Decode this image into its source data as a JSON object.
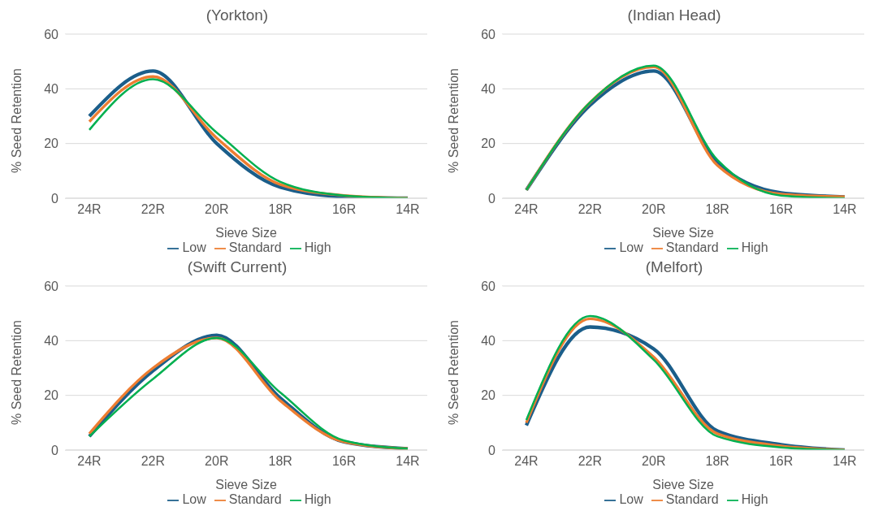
{
  "chart_data": [
    {
      "type": "line",
      "title": "(Yorkton)",
      "xlabel": "Sieve Size",
      "ylabel": "% Seed Retention",
      "categories": [
        "24R",
        "22R",
        "20R",
        "18R",
        "16R",
        "14R"
      ],
      "ylim": [
        0,
        60
      ],
      "yticks": [
        0,
        20,
        40,
        60
      ],
      "grid": "y",
      "legend": "bottom",
      "marker": "none",
      "line_style": "solid",
      "series": [
        {
          "name": "Low",
          "color": "#1b5e8a",
          "values": [
            30,
            46.5,
            20,
            4,
            0.5,
            0
          ]
        },
        {
          "name": "Standard",
          "color": "#ed7d31",
          "values": [
            28,
            44.5,
            22,
            5,
            1,
            0
          ]
        },
        {
          "name": "High",
          "color": "#00b050",
          "values": [
            25,
            43.5,
            24,
            6,
            1,
            0
          ]
        }
      ]
    },
    {
      "type": "line",
      "title": "(Indian Head)",
      "xlabel": "Sieve Size",
      "ylabel": "% Seed Retention",
      "categories": [
        "24R",
        "22R",
        "20R",
        "18R",
        "16R",
        "14R"
      ],
      "ylim": [
        0,
        60
      ],
      "yticks": [
        0,
        20,
        40,
        60
      ],
      "grid": "y",
      "legend": "bottom",
      "marker": "none",
      "line_style": "solid",
      "series": [
        {
          "name": "Low",
          "color": "#1b5e8a",
          "values": [
            3,
            34,
            46.5,
            13,
            2,
            0.5
          ]
        },
        {
          "name": "Standard",
          "color": "#ed7d31",
          "values": [
            3,
            35,
            48,
            12,
            1.5,
            0.5
          ]
        },
        {
          "name": "High",
          "color": "#00b050",
          "values": [
            3,
            35,
            48.5,
            14,
            1,
            0
          ]
        }
      ]
    },
    {
      "type": "line",
      "title": "(Swift Current)",
      "xlabel": "Sieve Size",
      "ylabel": "% Seed Retention",
      "categories": [
        "24R",
        "22R",
        "20R",
        "18R",
        "16R",
        "14R"
      ],
      "ylim": [
        0,
        60
      ],
      "yticks": [
        0,
        20,
        40,
        60
      ],
      "grid": "y",
      "legend": "bottom",
      "marker": "none",
      "line_style": "solid",
      "series": [
        {
          "name": "Low",
          "color": "#1b5e8a",
          "values": [
            5,
            29,
            42,
            19,
            3,
            0.5
          ]
        },
        {
          "name": "Standard",
          "color": "#ed7d31",
          "values": [
            6,
            30,
            41,
            18,
            3,
            0.5
          ]
        },
        {
          "name": "High",
          "color": "#00b050",
          "values": [
            5,
            26,
            41,
            21,
            3.5,
            0.5
          ]
        }
      ]
    },
    {
      "type": "line",
      "title": "(Melfort)",
      "xlabel": "Sieve Size",
      "ylabel": "% Seed Retention",
      "categories": [
        "24R",
        "22R",
        "20R",
        "18R",
        "16R",
        "14R"
      ],
      "ylim": [
        0,
        60
      ],
      "yticks": [
        0,
        20,
        40,
        60
      ],
      "grid": "y",
      "legend": "bottom",
      "marker": "none",
      "line_style": "solid",
      "series": [
        {
          "name": "Low",
          "color": "#1b5e8a",
          "values": [
            9,
            45,
            37,
            7,
            2,
            0
          ]
        },
        {
          "name": "Standard",
          "color": "#ed7d31",
          "values": [
            10,
            48,
            34,
            6,
            1.5,
            0
          ]
        },
        {
          "name": "High",
          "color": "#00b050",
          "values": [
            11,
            49,
            33,
            5,
            1,
            0
          ]
        }
      ]
    }
  ]
}
